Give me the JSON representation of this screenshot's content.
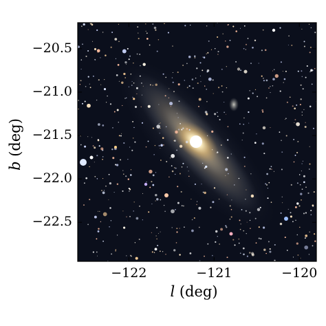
{
  "axes": {
    "xlabel_var": "l",
    "xlabel_unit": " (deg)",
    "ylabel_var": "b",
    "ylabel_unit": " (deg)",
    "xticks": [
      {
        "value": -122,
        "label": "−122"
      },
      {
        "value": -121,
        "label": "−121"
      },
      {
        "value": -120,
        "label": "−120"
      }
    ],
    "yticks": [
      {
        "value": -20.5,
        "label": "−20.5"
      },
      {
        "value": -21.0,
        "label": "−21.0"
      },
      {
        "value": -21.5,
        "label": "−21.5"
      },
      {
        "value": -22.0,
        "label": "−22.0"
      },
      {
        "value": -22.5,
        "label": "−22.5"
      }
    ],
    "xlim": [
      -122.6,
      -119.8
    ],
    "ylim": [
      -22.95,
      -20.2
    ]
  },
  "image": {
    "subject": "spiral galaxy on starfield",
    "background_color": "#0b0f1c"
  }
}
